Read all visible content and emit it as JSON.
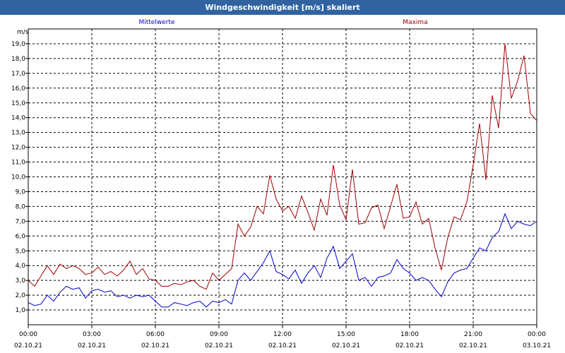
{
  "colors": {
    "titlebar_bg": "#3063a0",
    "series_mean": "#0000c8",
    "series_max": "#a00000"
  },
  "chart_data": {
    "type": "line",
    "title": "Windgeschwindigkeit [m/s] skaliert",
    "ylabel": "m/s",
    "ylim": [
      0,
      20
    ],
    "xlim": [
      0,
      24
    ],
    "y_ticks": [
      "1,0",
      "2,0",
      "3,0",
      "4,0",
      "5,0",
      "6,0",
      "7,0",
      "8,0",
      "9,0",
      "10,0",
      "11,0",
      "12,0",
      "13,0",
      "14,0",
      "15,0",
      "16,0",
      "17,0",
      "18,0",
      "19,0"
    ],
    "x_ticks": [
      {
        "time": "00:00",
        "date": "02.10.21"
      },
      {
        "time": "03:00",
        "date": "02.10.21"
      },
      {
        "time": "06:00",
        "date": "02.10.21"
      },
      {
        "time": "09:00",
        "date": "02.10.21"
      },
      {
        "time": "12:00",
        "date": "02.10.21"
      },
      {
        "time": "15:00",
        "date": "02.10.21"
      },
      {
        "time": "18:00",
        "date": "02.10.21"
      },
      {
        "time": "21:00",
        "date": "02.10.21"
      },
      {
        "time": "00:00",
        "date": "03.10.21"
      }
    ],
    "grid": true,
    "series": [
      {
        "name": "Mittelwerte",
        "color": "#0000c8",
        "points": [
          [
            0,
            1.5
          ],
          [
            0.3,
            1.3
          ],
          [
            0.6,
            1.4
          ],
          [
            0.9,
            2.0
          ],
          [
            1.2,
            1.6
          ],
          [
            1.5,
            2.2
          ],
          [
            1.8,
            2.6
          ],
          [
            2.1,
            2.4
          ],
          [
            2.4,
            2.5
          ],
          [
            2.7,
            1.8
          ],
          [
            3.0,
            2.3
          ],
          [
            3.3,
            2.4
          ],
          [
            3.6,
            2.2
          ],
          [
            3.9,
            2.3
          ],
          [
            4.2,
            1.9
          ],
          [
            4.5,
            2.0
          ],
          [
            4.8,
            1.8
          ],
          [
            5.1,
            2.0
          ],
          [
            5.4,
            1.9
          ],
          [
            5.7,
            2.0
          ],
          [
            6.0,
            1.6
          ],
          [
            6.3,
            1.2
          ],
          [
            6.6,
            1.2
          ],
          [
            6.9,
            1.5
          ],
          [
            7.2,
            1.4
          ],
          [
            7.5,
            1.3
          ],
          [
            7.8,
            1.5
          ],
          [
            8.1,
            1.6
          ],
          [
            8.4,
            1.2
          ],
          [
            8.7,
            1.6
          ],
          [
            9.0,
            1.5
          ],
          [
            9.3,
            1.7
          ],
          [
            9.6,
            1.4
          ],
          [
            9.9,
            3.0
          ],
          [
            10.2,
            3.5
          ],
          [
            10.5,
            3.0
          ],
          [
            10.8,
            3.6
          ],
          [
            11.1,
            4.2
          ],
          [
            11.4,
            5.0
          ],
          [
            11.7,
            3.6
          ],
          [
            12.0,
            3.4
          ],
          [
            12.3,
            3.1
          ],
          [
            12.6,
            3.7
          ],
          [
            12.9,
            2.8
          ],
          [
            13.2,
            3.5
          ],
          [
            13.5,
            4.0
          ],
          [
            13.8,
            3.2
          ],
          [
            14.1,
            4.5
          ],
          [
            14.4,
            5.3
          ],
          [
            14.7,
            3.8
          ],
          [
            15.0,
            4.3
          ],
          [
            15.3,
            4.8
          ],
          [
            15.6,
            3.0
          ],
          [
            15.9,
            3.2
          ],
          [
            16.2,
            2.6
          ],
          [
            16.5,
            3.2
          ],
          [
            16.8,
            3.3
          ],
          [
            17.1,
            3.5
          ],
          [
            17.4,
            4.4
          ],
          [
            17.7,
            3.8
          ],
          [
            18.0,
            3.5
          ],
          [
            18.3,
            3.0
          ],
          [
            18.6,
            3.2
          ],
          [
            18.9,
            3.0
          ],
          [
            19.2,
            2.4
          ],
          [
            19.5,
            1.9
          ],
          [
            19.8,
            2.9
          ],
          [
            20.1,
            3.5
          ],
          [
            20.4,
            3.7
          ],
          [
            20.7,
            3.8
          ],
          [
            21.0,
            4.5
          ],
          [
            21.3,
            5.2
          ],
          [
            21.6,
            5.0
          ],
          [
            21.9,
            5.9
          ],
          [
            22.2,
            6.3
          ],
          [
            22.5,
            7.5
          ],
          [
            22.8,
            6.5
          ],
          [
            23.1,
            7.0
          ],
          [
            23.4,
            6.8
          ],
          [
            23.7,
            6.7
          ],
          [
            24.0,
            7.0
          ]
        ]
      },
      {
        "name": "Maxima",
        "color": "#a00000",
        "points": [
          [
            0,
            3.0
          ],
          [
            0.3,
            2.6
          ],
          [
            0.6,
            3.3
          ],
          [
            0.9,
            4.0
          ],
          [
            1.2,
            3.4
          ],
          [
            1.5,
            4.1
          ],
          [
            1.8,
            3.8
          ],
          [
            2.1,
            4.0
          ],
          [
            2.4,
            3.8
          ],
          [
            2.7,
            3.4
          ],
          [
            3.0,
            3.5
          ],
          [
            3.3,
            3.9
          ],
          [
            3.6,
            3.4
          ],
          [
            3.9,
            3.6
          ],
          [
            4.2,
            3.3
          ],
          [
            4.5,
            3.7
          ],
          [
            4.8,
            4.3
          ],
          [
            5.1,
            3.4
          ],
          [
            5.4,
            3.8
          ],
          [
            5.7,
            3.1
          ],
          [
            6.0,
            3.0
          ],
          [
            6.3,
            2.6
          ],
          [
            6.6,
            2.6
          ],
          [
            6.9,
            2.8
          ],
          [
            7.2,
            2.7
          ],
          [
            7.5,
            2.9
          ],
          [
            7.8,
            3.0
          ],
          [
            8.1,
            2.6
          ],
          [
            8.4,
            2.4
          ],
          [
            8.7,
            3.5
          ],
          [
            9.0,
            3.0
          ],
          [
            9.3,
            3.4
          ],
          [
            9.6,
            3.8
          ],
          [
            9.9,
            6.8
          ],
          [
            10.2,
            6.0
          ],
          [
            10.5,
            6.6
          ],
          [
            10.8,
            8.0
          ],
          [
            11.1,
            7.5
          ],
          [
            11.4,
            10.1
          ],
          [
            11.7,
            8.5
          ],
          [
            12.0,
            7.7
          ],
          [
            12.3,
            8.0
          ],
          [
            12.6,
            7.2
          ],
          [
            12.9,
            8.7
          ],
          [
            13.2,
            7.6
          ],
          [
            13.5,
            6.4
          ],
          [
            13.8,
            8.5
          ],
          [
            14.1,
            7.4
          ],
          [
            14.4,
            10.8
          ],
          [
            14.7,
            8.1
          ],
          [
            15.0,
            7.1
          ],
          [
            15.3,
            10.5
          ],
          [
            15.6,
            6.8
          ],
          [
            15.9,
            6.9
          ],
          [
            16.2,
            7.9
          ],
          [
            16.5,
            8.1
          ],
          [
            16.8,
            6.5
          ],
          [
            17.1,
            8.0
          ],
          [
            17.4,
            9.5
          ],
          [
            17.7,
            7.2
          ],
          [
            18.0,
            7.3
          ],
          [
            18.3,
            8.3
          ],
          [
            18.6,
            6.8
          ],
          [
            18.9,
            7.2
          ],
          [
            19.2,
            5.2
          ],
          [
            19.5,
            3.7
          ],
          [
            19.8,
            5.9
          ],
          [
            20.1,
            7.3
          ],
          [
            20.4,
            7.1
          ],
          [
            20.7,
            8.3
          ],
          [
            21.0,
            10.8
          ],
          [
            21.3,
            13.6
          ],
          [
            21.6,
            9.8
          ],
          [
            21.9,
            15.5
          ],
          [
            22.2,
            13.3
          ],
          [
            22.5,
            19.0
          ],
          [
            22.8,
            15.3
          ],
          [
            23.1,
            16.5
          ],
          [
            23.4,
            18.2
          ],
          [
            23.7,
            14.3
          ],
          [
            24.0,
            13.8
          ]
        ]
      }
    ]
  }
}
